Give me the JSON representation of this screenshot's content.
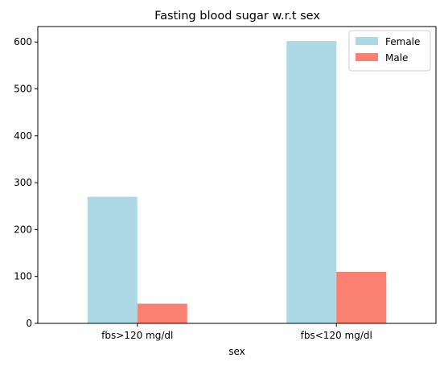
{
  "chart_data": {
    "type": "bar",
    "title": "Fasting blood sugar w.r.t sex",
    "xlabel": "sex",
    "ylabel": "",
    "categories": [
      "fbs>120 mg/dl",
      "fbs<120 mg/dl"
    ],
    "series": [
      {
        "name": "Female",
        "values": [
          270,
          602
        ],
        "color": "#add8e6"
      },
      {
        "name": "Male",
        "values": [
          42,
          110
        ],
        "color": "#fa8072"
      }
    ],
    "ylim": [
      0,
      633
    ],
    "yticks": [
      0,
      100,
      200,
      300,
      400,
      500,
      600
    ],
    "grid": false,
    "legend": "top-right"
  }
}
